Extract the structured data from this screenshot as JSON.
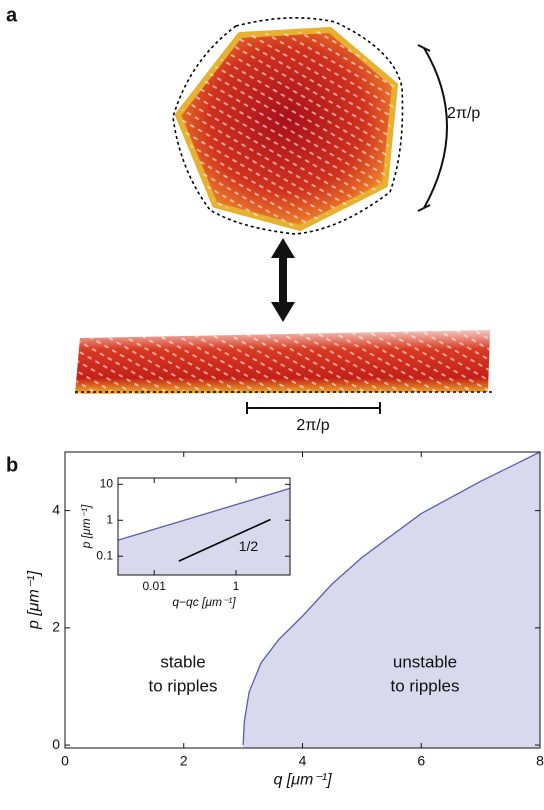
{
  "panel_a": {
    "label": "a",
    "round_scale_label": "2π/p",
    "flat_scale_label": "2π/p"
  },
  "panel_b": {
    "label": "b"
  },
  "chart_data": [
    {
      "type": "area",
      "x": [
        3,
        3.02,
        3.1,
        3.3,
        3.6,
        4,
        4.5,
        5,
        6,
        7,
        8
      ],
      "values": [
        0,
        0.4,
        0.9,
        1.4,
        1.8,
        2.2,
        2.75,
        3.2,
        3.95,
        4.5,
        5.0
      ],
      "xlim": [
        0,
        8
      ],
      "ylim": [
        -0.05,
        5.0
      ],
      "xticks": [
        0,
        2,
        4,
        6,
        8
      ],
      "yticks": [
        0,
        2,
        4
      ],
      "fill": "#d9d9ee",
      "color": "#5a5eae",
      "x_label": "q [μm⁻¹]",
      "y_label": "p [μm⁻¹]",
      "annotations": [
        {
          "lines": [
            "stable",
            "to ripples"
          ]
        },
        {
          "lines": [
            "unstable",
            "to ripples"
          ]
        }
      ]
    },
    {
      "type": "area",
      "log_x": true,
      "log_y": true,
      "x": [
        0.0013,
        21
      ],
      "values": [
        0.28,
        7.7
      ],
      "xlim": [
        0.0013,
        21
      ],
      "ylim": [
        0.03,
        15
      ],
      "xticks": [
        0.01,
        1
      ],
      "yticks": [
        0.1,
        1,
        10
      ],
      "fill": "#d9d9ee",
      "color": "#5a5eae",
      "x_label": "q−qc [μm⁻¹]",
      "y_label": "p [μm⁻¹]",
      "reference_line": {
        "x": [
          0.04,
          7
        ],
        "values": [
          0.073,
          1.05
        ],
        "label": "1/2",
        "color": "#000000"
      }
    }
  ]
}
